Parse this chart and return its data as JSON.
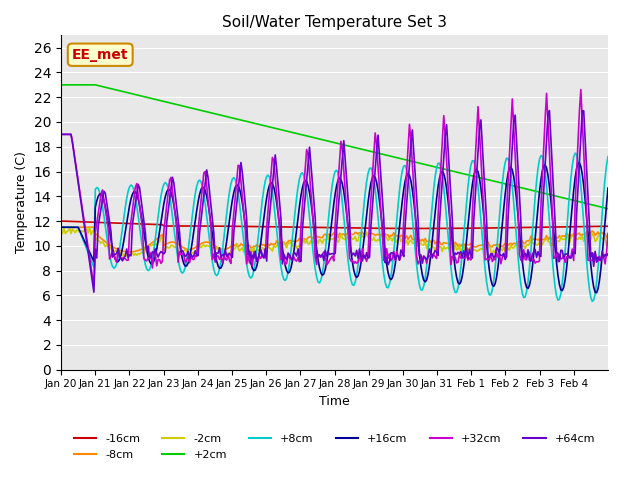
{
  "title": "Soil/Water Temperature Set 3",
  "xlabel": "Time",
  "ylabel": "Temperature (C)",
  "ylim": [
    0,
    27
  ],
  "yticks": [
    0,
    2,
    4,
    6,
    8,
    10,
    12,
    14,
    16,
    18,
    20,
    22,
    24,
    26
  ],
  "plot_bg_color": "#e8e8e8",
  "annotation_text": "EE_met",
  "annotation_bg": "#ffffcc",
  "annotation_border": "#cc8800",
  "annotation_text_color": "#cc0000",
  "xtick_labels": [
    "Jan 20",
    "Jan 21",
    "Jan 22",
    "Jan 23",
    "Jan 24",
    "Jan 25",
    "Jan 26",
    "Jan 27",
    "Jan 28",
    "Jan 29",
    "Jan 30",
    "Jan 31",
    "Feb 1",
    "Feb 2",
    "Feb 3",
    "Feb 4"
  ],
  "line_colors": {
    "m16cm": "#cc0000",
    "m8cm": "#ff8800",
    "m2cm": "#cccc00",
    "p2cm": "#00cc00",
    "p8cm": "#00cccc",
    "p16cm": "#000099",
    "p32cm": "#cc00cc",
    "p64cm": "#6600cc"
  },
  "legend_labels": [
    "-16cm",
    "-8cm",
    "-2cm",
    "+2cm",
    "+8cm",
    "+16cm",
    "+32cm",
    "+64cm"
  ]
}
